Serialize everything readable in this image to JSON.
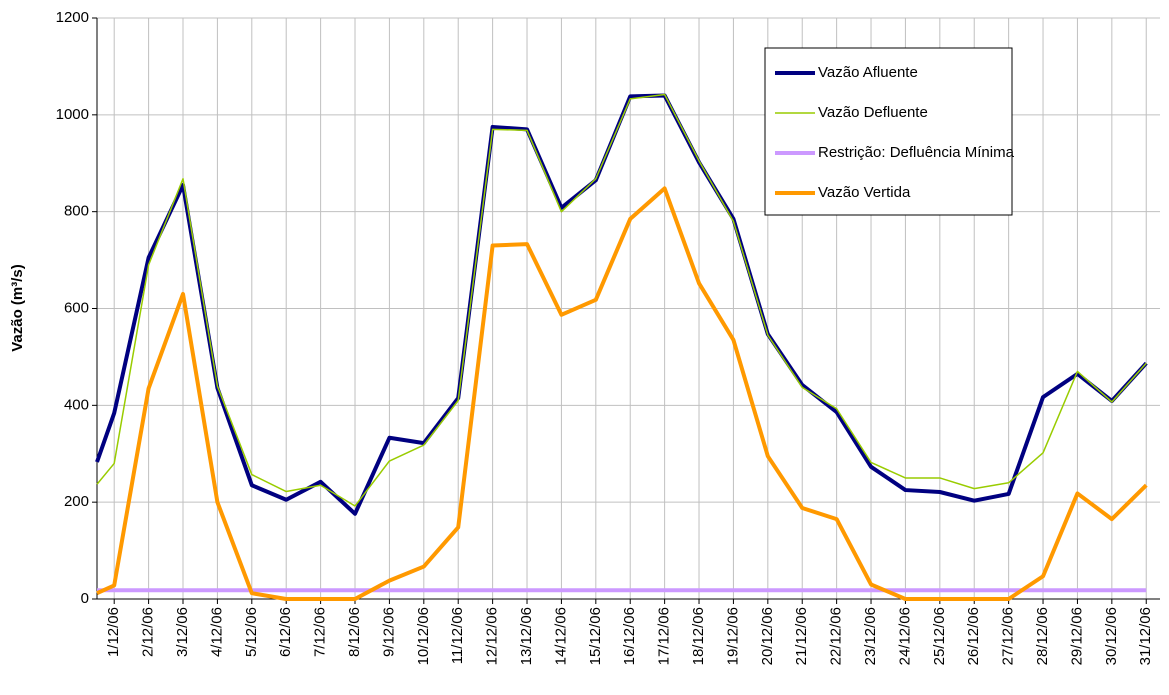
{
  "chart_data": {
    "type": "line",
    "ylabel": "Vazão (m³/s)",
    "x": [
      0.5,
      1,
      2,
      3,
      4,
      5,
      6,
      7,
      8,
      9,
      10,
      11,
      12,
      13,
      14,
      15,
      16,
      17,
      18,
      19,
      20,
      21,
      22,
      23,
      24,
      25,
      26,
      27,
      28,
      29,
      30,
      31
    ],
    "series": [
      {
        "name": "Vazão Afluente",
        "color": "#000080",
        "width": 4,
        "values": [
          283,
          384,
          705,
          855,
          436,
          235,
          205,
          242,
          176,
          333,
          322,
          415,
          975,
          970,
          808,
          865,
          1038,
          1040,
          902,
          785,
          547,
          442,
          386,
          273,
          225,
          221,
          203,
          217,
          417,
          465,
          409,
          487
        ]
      },
      {
        "name": "Vazão Defluente",
        "color": "#99cc00",
        "width": 1.5,
        "values": [
          237,
          280,
          690,
          868,
          440,
          257,
          222,
          235,
          192,
          285,
          318,
          410,
          970,
          968,
          800,
          868,
          1033,
          1042,
          905,
          780,
          545,
          437,
          393,
          282,
          250,
          250,
          228,
          240,
          302,
          470,
          407,
          487
        ]
      },
      {
        "name": "Restrição: Defluência Mínima",
        "color": "#cc99ff",
        "width": 4,
        "values": [
          18,
          18,
          18,
          18,
          18,
          18,
          18,
          18,
          18,
          18,
          18,
          18,
          18,
          18,
          18,
          18,
          18,
          18,
          18,
          18,
          18,
          18,
          18,
          18,
          18,
          18,
          18,
          18,
          18,
          18,
          18,
          18
        ]
      },
      {
        "name": "Vazão Vertida",
        "color": "#ff9900",
        "width": 4,
        "values": [
          12,
          28,
          435,
          630,
          200,
          12,
          0,
          0,
          0,
          38,
          67,
          148,
          730,
          733,
          587,
          618,
          785,
          848,
          652,
          535,
          295,
          188,
          165,
          30,
          0,
          0,
          0,
          0,
          47,
          218,
          165,
          235
        ]
      }
    ],
    "xlim": [
      0.5,
      31.4
    ],
    "xticks": [
      {
        "value": 1,
        "label": "1/12/06"
      },
      {
        "value": 2,
        "label": "2/12/06"
      },
      {
        "value": 3,
        "label": "3/12/06"
      },
      {
        "value": 4,
        "label": "4/12/06"
      },
      {
        "value": 5,
        "label": "5/12/06"
      },
      {
        "value": 6,
        "label": "6/12/06"
      },
      {
        "value": 7,
        "label": "7/12/06"
      },
      {
        "value": 8,
        "label": "8/12/06"
      },
      {
        "value": 9,
        "label": "9/12/06"
      },
      {
        "value": 10,
        "label": "10/12/06"
      },
      {
        "value": 11,
        "label": "11/12/06"
      },
      {
        "value": 12,
        "label": "12/12/06"
      },
      {
        "value": 13,
        "label": "13/12/06"
      },
      {
        "value": 14,
        "label": "14/12/06"
      },
      {
        "value": 15,
        "label": "15/12/06"
      },
      {
        "value": 16,
        "label": "16/12/06"
      },
      {
        "value": 17,
        "label": "17/12/06"
      },
      {
        "value": 18,
        "label": "18/12/06"
      },
      {
        "value": 19,
        "label": "19/12/06"
      },
      {
        "value": 20,
        "label": "20/12/06"
      },
      {
        "value": 21,
        "label": "21/12/06"
      },
      {
        "value": 22,
        "label": "22/12/06"
      },
      {
        "value": 23,
        "label": "23/12/06"
      },
      {
        "value": 24,
        "label": "24/12/06"
      },
      {
        "value": 25,
        "label": "25/12/06"
      },
      {
        "value": 26,
        "label": "26/12/06"
      },
      {
        "value": 27,
        "label": "27/12/06"
      },
      {
        "value": 28,
        "label": "28/12/06"
      },
      {
        "value": 29,
        "label": "29/12/06"
      },
      {
        "value": 30,
        "label": "30/12/06"
      },
      {
        "value": 31,
        "label": "31/12/06"
      }
    ],
    "ylim": [
      0,
      1200
    ],
    "yticks": [
      0,
      200,
      400,
      600,
      800,
      1000,
      1200
    ],
    "grid": true,
    "legend": "upper right"
  }
}
